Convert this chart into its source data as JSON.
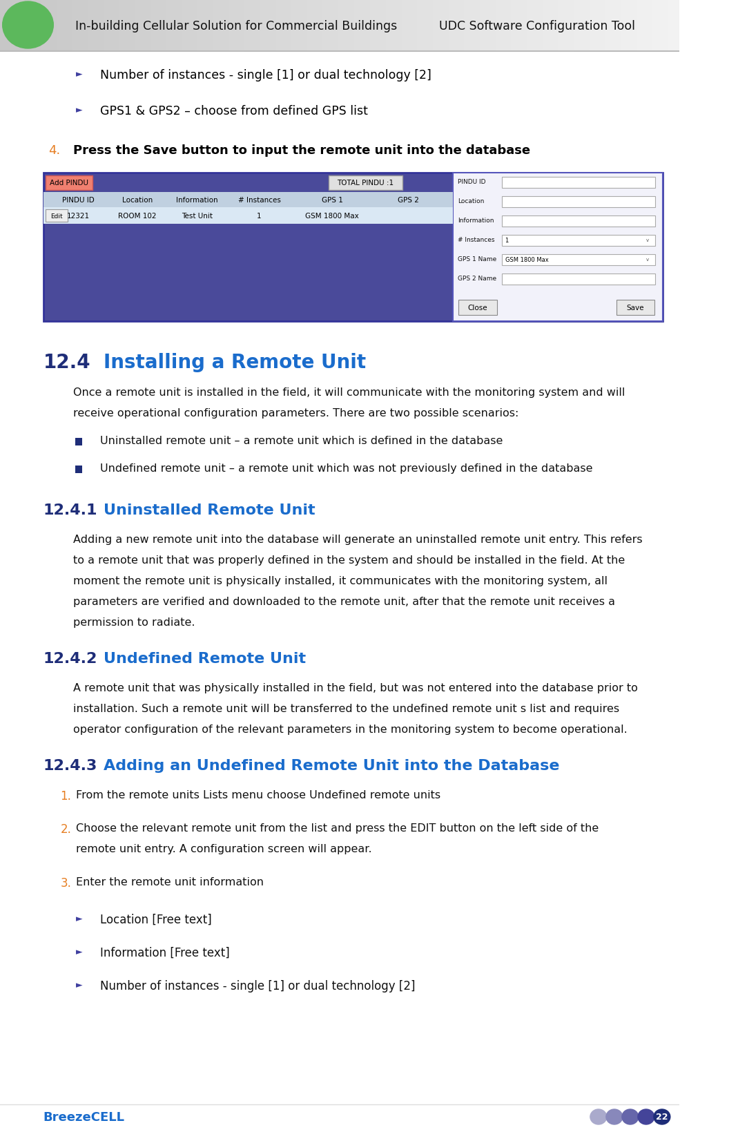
{
  "header_left": "In-building Cellular Solution for Commercial Buildings",
  "header_right": "UDC Software Configuration Tool",
  "header_green_circle_color": "#5cb85c",
  "page_bg": "#ffffff",
  "bullet_items_top": [
    "Number of instances - single [1] or dual technology [2]",
    "GPS1 & GPS2 – choose from defined GPS list"
  ],
  "step4_text": "Press the Save button to input the remote unit into the database",
  "section_12_4_num": "12.4",
  "section_12_4_title": "Installing a Remote Unit",
  "section_12_4_body_lines": [
    "Once a remote unit is installed in the field, it will communicate with the monitoring system and will",
    "receive operational configuration parameters. There are two possible scenarios:"
  ],
  "bullet_square_items": [
    "Uninstalled remote unit – a remote unit which is defined in the database",
    "Undefined remote unit – a remote unit which was not previously defined in the database"
  ],
  "section_12_4_1_num": "12.4.1",
  "section_12_4_1_title": "Uninstalled Remote Unit",
  "section_12_4_1_body_lines": [
    "Adding a new remote unit into the database will generate an uninstalled remote unit entry. This refers",
    "to a remote unit that was properly defined in the system and should be installed in the field. At the",
    "moment the remote unit is physically installed, it communicates with the monitoring system, all",
    "parameters are verified and downloaded to the remote unit, after that the remote unit receives a",
    "permission to radiate."
  ],
  "section_12_4_2_num": "12.4.2",
  "section_12_4_2_title": "Undefined Remote Unit",
  "section_12_4_2_body_lines": [
    "A remote unit that was physically installed in the field, but was not entered into the database prior to",
    "installation. Such a remote unit will be transferred to the undefined remote unit s list and requires",
    "operator configuration of the relevant parameters in the monitoring system to become operational."
  ],
  "section_12_4_3_num": "12.4.3",
  "section_12_4_3_title": "Adding an Undefined Remote Unit into the Database",
  "numbered_items_12_4_3": [
    [
      "From the remote units Lists menu choose Undefined remote units"
    ],
    [
      "Choose the relevant remote unit from the list and press the EDIT button on the left side of the",
      "remote unit entry. A configuration screen will appear."
    ],
    [
      "Enter the remote unit information"
    ]
  ],
  "bullet_items_bottom": [
    "Location [Free text]",
    "Information [Free text]",
    "Number of instances - single [1] or dual technology [2]"
  ],
  "footer_left": "BreezeCELL",
  "footer_page": "22",
  "section_color": "#1e2d78",
  "title_color": "#1a6ccc",
  "number_color": "#e67e22",
  "footer_color": "#1a6ccc",
  "table_bg": "#4a4a9a",
  "table_right_panel_bg": "#f0f0f8"
}
